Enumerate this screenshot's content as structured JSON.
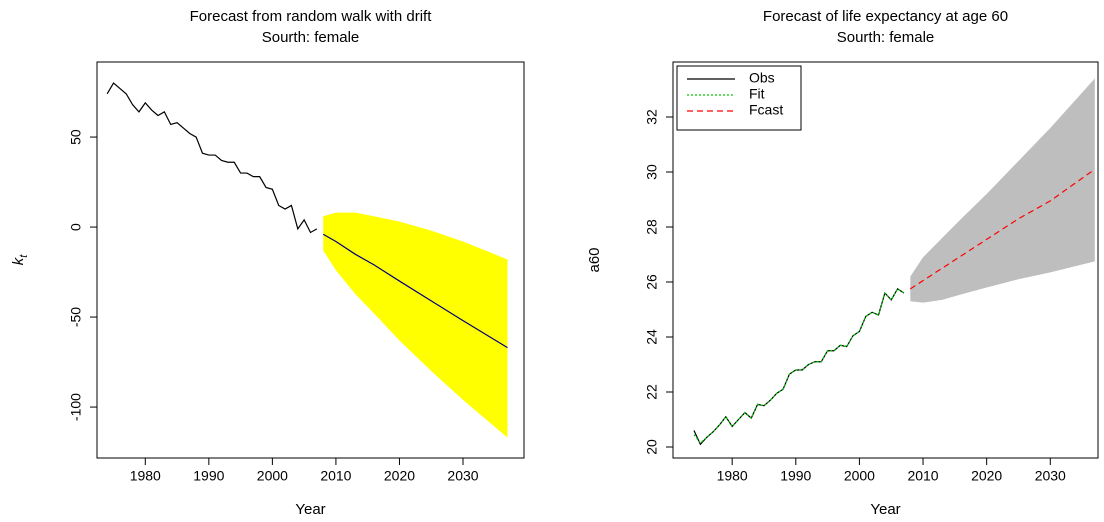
{
  "chart_data": [
    {
      "type": "line",
      "title": "Forecast from random walk with drift",
      "subtitle": "Sourth: female",
      "xlabel": "Year",
      "ylabel": "k",
      "ylabel_sub": "t",
      "xlim": [
        1972.4,
        2039.6
      ],
      "ylim": [
        -128.3,
        91.7
      ],
      "xticks": [
        1980,
        1990,
        2000,
        2010,
        2020,
        2030
      ],
      "yticks": [
        -100,
        -50,
        0,
        50
      ],
      "band": {
        "color": "#ffff00",
        "x": [
          2008,
          2010,
          2013,
          2016,
          2020,
          2025,
          2030,
          2037
        ],
        "upper": [
          6,
          8,
          8,
          6,
          3,
          -2,
          -8,
          -18
        ],
        "lower": [
          -13,
          -24,
          -37,
          -48,
          -63,
          -80,
          -96,
          -117
        ]
      },
      "series": [
        {
          "color": "#000000",
          "dash": "solid",
          "x": [
            1974,
            1975,
            1976,
            1977,
            1978,
            1979,
            1980,
            1981,
            1982,
            1983,
            1984,
            1985,
            1986,
            1987,
            1988,
            1989,
            1990,
            1991,
            1992,
            1993,
            1994,
            1995,
            1996,
            1997,
            1998,
            1999,
            2000,
            2001,
            2002,
            2003,
            2004,
            2005,
            2006,
            2007
          ],
          "values": [
            74,
            80,
            77,
            74,
            68,
            64,
            69,
            65,
            62,
            64,
            57,
            58,
            55,
            52,
            50,
            41,
            40,
            40,
            37,
            36,
            36,
            30,
            30,
            28,
            28,
            22,
            21,
            12,
            10,
            12,
            -1,
            4,
            -3,
            -1
          ]
        },
        {
          "color": "#000080",
          "dash": "solid",
          "x": [
            2008,
            2010,
            2013,
            2016,
            2020,
            2025,
            2030,
            2037
          ],
          "values": [
            -4,
            -8,
            -15,
            -21,
            -30,
            -41,
            -52,
            -67
          ]
        }
      ]
    },
    {
      "type": "line",
      "title": "Forecast of life expectancy at age 60",
      "subtitle": "Sourth: female",
      "xlabel": "Year",
      "ylabel": "a60",
      "xlim": [
        1970.7,
        2037.5
      ],
      "ylim": [
        19.6,
        34.0
      ],
      "xticks": [
        1980,
        1990,
        2000,
        2010,
        2020,
        2030
      ],
      "yticks": [
        20,
        22,
        24,
        26,
        28,
        30,
        32
      ],
      "legend": "top-left",
      "band": {
        "color": "#bebebe",
        "x": [
          2008,
          2010,
          2013,
          2016,
          2020,
          2025,
          2030,
          2037
        ],
        "upper": [
          26.2,
          26.9,
          27.6,
          28.3,
          29.2,
          30.4,
          31.6,
          33.4
        ],
        "lower": [
          25.3,
          25.25,
          25.35,
          25.55,
          25.8,
          26.1,
          26.35,
          26.75
        ]
      },
      "series": [
        {
          "name": "Obs",
          "color": "#000000",
          "dash": "solid",
          "x": [
            1974,
            1975,
            1976,
            1977,
            1978,
            1979,
            1980,
            1981,
            1982,
            1983,
            1984,
            1985,
            1986,
            1987,
            1988,
            1989,
            1990,
            1991,
            1992,
            1993,
            1994,
            1995,
            1996,
            1997,
            1998,
            1999,
            2000,
            2001,
            2002,
            2003,
            2004,
            2005,
            2006,
            2007
          ],
          "values": [
            20.6,
            20.1,
            20.35,
            20.55,
            20.8,
            21.1,
            20.75,
            21.0,
            21.25,
            21.05,
            21.55,
            21.5,
            21.7,
            21.95,
            22.1,
            22.65,
            22.8,
            22.8,
            23.0,
            23.1,
            23.1,
            23.5,
            23.5,
            23.7,
            23.65,
            24.05,
            24.2,
            24.75,
            24.9,
            24.8,
            25.6,
            25.35,
            25.75,
            25.6
          ]
        },
        {
          "name": "Fit",
          "color": "#00cc00",
          "dash": "dotted",
          "x": [
            1974,
            1975,
            1976,
            1977,
            1978,
            1979,
            1980,
            1981,
            1982,
            1983,
            1984,
            1985,
            1986,
            1987,
            1988,
            1989,
            1990,
            1991,
            1992,
            1993,
            1994,
            1995,
            1996,
            1997,
            1998,
            1999,
            2000,
            2001,
            2002,
            2003,
            2004,
            2005,
            2006,
            2007
          ],
          "values": [
            20.45,
            20.15,
            20.35,
            20.55,
            20.8,
            21.1,
            20.75,
            21.0,
            21.25,
            21.05,
            21.55,
            21.5,
            21.7,
            21.95,
            22.1,
            22.65,
            22.8,
            22.8,
            23.0,
            23.1,
            23.1,
            23.5,
            23.5,
            23.7,
            23.65,
            24.05,
            24.2,
            24.75,
            24.9,
            24.8,
            25.6,
            25.35,
            25.75,
            25.6
          ]
        },
        {
          "name": "Fcast",
          "color": "#ff0000",
          "dash": "dashed",
          "x": [
            2008,
            2010,
            2013,
            2016,
            2020,
            2025,
            2030,
            2037
          ],
          "values": [
            25.75,
            26.05,
            26.5,
            26.95,
            27.55,
            28.3,
            28.95,
            30.1
          ]
        }
      ]
    }
  ]
}
